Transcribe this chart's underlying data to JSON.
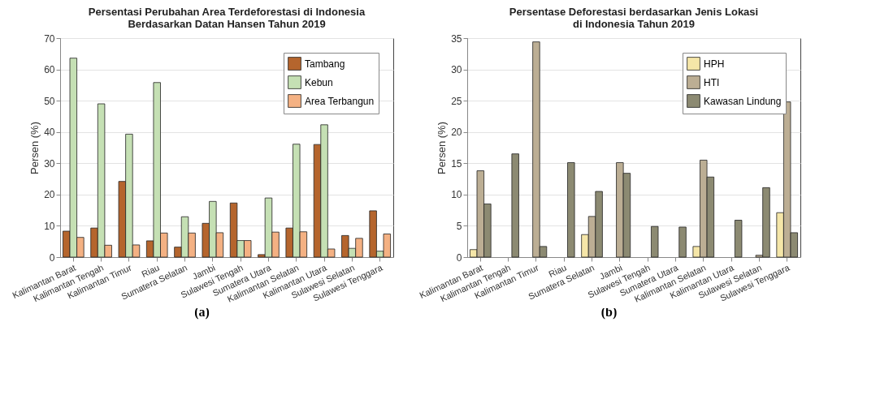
{
  "chart_data": [
    {
      "type": "bar",
      "title": "Persentasi Perubahan Area Terdeforestasi di Indonesia\nBerdasarkan Datan Hansen Tahun 2019",
      "ylabel": "Persen (%)",
      "categories": [
        "Kalimantan Barat",
        "Kalimantan Tengah",
        "Kalimantan Timur",
        "Riau",
        "Sumatera Selatan",
        "Jambi",
        "Sulawesi Tengah",
        "Sumatera Utara",
        "Kalimantan Selatan",
        "Kalimantan Utara",
        "Sulawesi Selatan",
        "Sulawesi Tenggara"
      ],
      "series": [
        {
          "name": "Tambang",
          "color": "#b5652d",
          "values": [
            8.3,
            9.3,
            24.2,
            5.2,
            3.2,
            10.8,
            17.3,
            0.8,
            9.3,
            36,
            6.9,
            14.8
          ]
        },
        {
          "name": "Kebun",
          "color": "#c5e0b4",
          "values": [
            63.6,
            49,
            39.3,
            55.8,
            12.9,
            17.8,
            5.3,
            18.9,
            36.1,
            42.3,
            2.8,
            1.9
          ]
        },
        {
          "name": "Area Terbangun",
          "color": "#f4b183",
          "values": [
            6.3,
            3.8,
            3.9,
            7.7,
            7.7,
            7.8,
            5.3,
            8,
            8.1,
            2.6,
            6,
            7.4
          ]
        }
      ],
      "ylim": [
        0,
        70
      ],
      "yticks": [
        0,
        10,
        20,
        30,
        40,
        50,
        60,
        70
      ],
      "grid": "y",
      "legend": "top right",
      "annotations": [
        "(a)"
      ]
    },
    {
      "type": "bar",
      "title": "Persentase Deforestasi berdasarkan Jenis Lokasi\ndi Indonesia Tahun 2019",
      "ylabel": "Persen (%)",
      "categories": [
        "Kalimantan Barat",
        "Kalimantan Tengah",
        "Kalimantan Timur",
        "Riau",
        "Sumatera Selatan",
        "Jambi",
        "Sulawesi Tengah",
        "Sumatera Utara",
        "Kalimantan Selatan",
        "Kalimantan Utara",
        "Sulawesi Selatan",
        "Sulawesi Tenggara"
      ],
      "series": [
        {
          "name": "HPH",
          "color": "#f5e6a8",
          "values": [
            1.2,
            null,
            null,
            null,
            3.6,
            null,
            null,
            null,
            1.7,
            null,
            null,
            7.1
          ]
        },
        {
          "name": "HTI",
          "color": "#bcae94",
          "values": [
            13.8,
            null,
            34.4,
            null,
            6.5,
            15.1,
            null,
            null,
            15.5,
            null,
            0.3,
            24.8
          ]
        },
        {
          "name": "Kawasan Lindung",
          "color": "#8c8a72",
          "values": [
            8.5,
            16.5,
            1.7,
            15.1,
            10.5,
            13.4,
            4.9,
            4.8,
            12.8,
            5.9,
            11.1,
            3.9
          ]
        }
      ],
      "ylim": [
        0,
        35
      ],
      "yticks": [
        0,
        5,
        10,
        15,
        20,
        25,
        30,
        35
      ],
      "grid": "y",
      "legend": "top right",
      "annotations": [
        "(b)"
      ]
    }
  ]
}
